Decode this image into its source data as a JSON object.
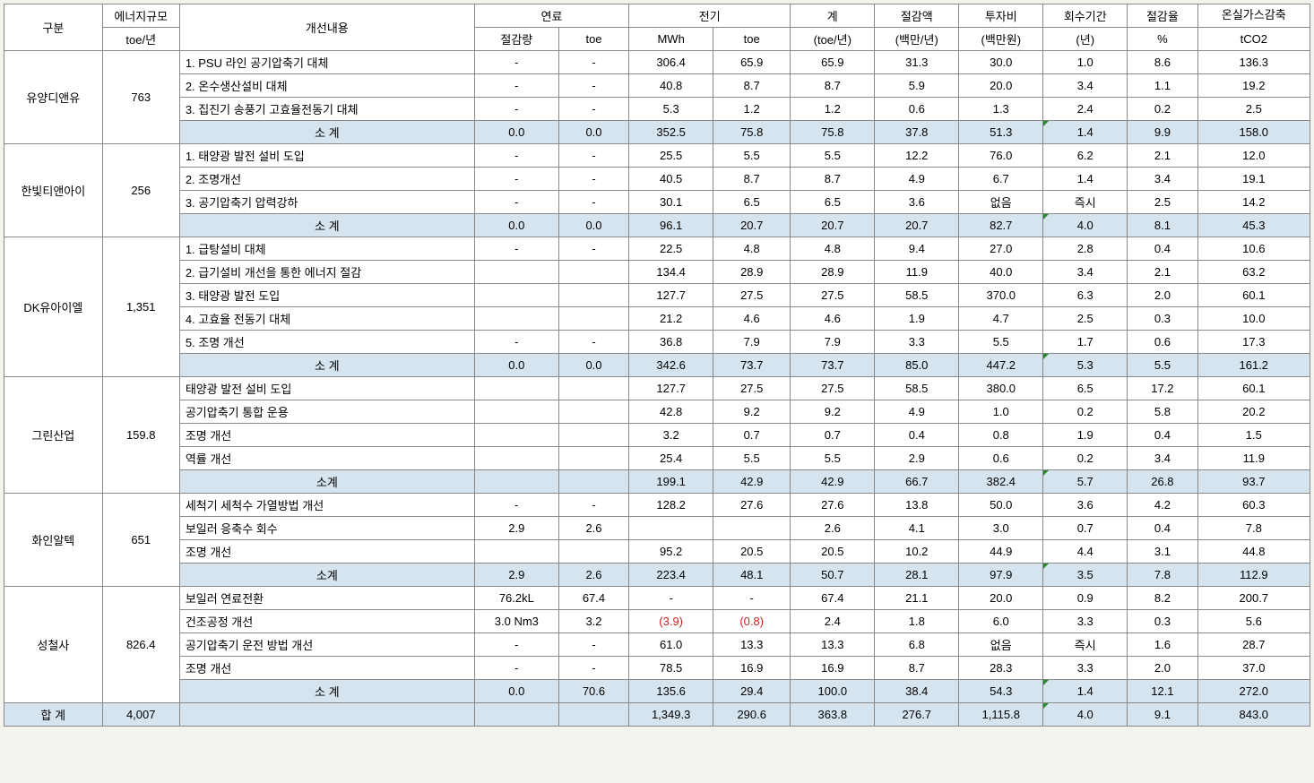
{
  "headers": {
    "gubun": "구분",
    "scale_top": "에너지규모",
    "scale_unit": "toe/년",
    "desc": "개선내용",
    "fuel": "연료",
    "fuel_sub1": "절감량",
    "fuel_sub2": "toe",
    "elec": "전기",
    "elec_sub1": "MWh",
    "elec_sub2": "toe",
    "total_top": "계",
    "total_unit": "(toe/년)",
    "save_top": "절감액",
    "save_unit": "(백만/년)",
    "invest_top": "투자비",
    "invest_unit": "(백만원)",
    "payback_top": "회수기간",
    "payback_unit": "(년)",
    "rate_top": "절감율",
    "rate_unit": "%",
    "ghg_top": "온실가스감축",
    "ghg_unit": "tCO2"
  },
  "groups": [
    {
      "name": "유양디앤유",
      "scale": "763",
      "rows": [
        {
          "desc": "1. PSU 라인 공기압축기 대체",
          "f1": "-",
          "f2": "-",
          "e1": "306.4",
          "e2": "65.9",
          "tot": "65.9",
          "sav": "31.3",
          "inv": "30.0",
          "pb": "1.0",
          "rt": "8.6",
          "ghg": "136.3"
        },
        {
          "desc": "2. 온수생산설비 대체",
          "f1": "-",
          "f2": "-",
          "e1": "40.8",
          "e2": "8.7",
          "tot": "8.7",
          "sav": "5.9",
          "inv": "20.0",
          "pb": "3.4",
          "rt": "1.1",
          "ghg": "19.2"
        },
        {
          "desc": "3. 집진기 송풍기 고효율전동기 대체",
          "f1": "-",
          "f2": "-",
          "e1": "5.3",
          "e2": "1.2",
          "tot": "1.2",
          "sav": "0.6",
          "inv": "1.3",
          "pb": "2.4",
          "rt": "0.2",
          "ghg": "2.5"
        }
      ],
      "subtotal": {
        "label": "소 계",
        "f1": "0.0",
        "f2": "0.0",
        "e1": "352.5",
        "e2": "75.8",
        "tot": "75.8",
        "sav": "37.8",
        "inv": "51.3",
        "pb": "1.4",
        "rt": "9.9",
        "ghg": "158.0"
      }
    },
    {
      "name": "한빛티앤아이",
      "scale": "256",
      "rows": [
        {
          "desc": "1. 태양광 발전 설비 도입",
          "f1": "-",
          "f2": "-",
          "e1": "25.5",
          "e2": "5.5",
          "tot": "5.5",
          "sav": "12.2",
          "inv": "76.0",
          "pb": "6.2",
          "rt": "2.1",
          "ghg": "12.0"
        },
        {
          "desc": "2. 조명개선",
          "f1": "-",
          "f2": "-",
          "e1": "40.5",
          "e2": "8.7",
          "tot": "8.7",
          "sav": "4.9",
          "inv": "6.7",
          "pb": "1.4",
          "rt": "3.4",
          "ghg": "19.1"
        },
        {
          "desc": "3. 공기압축기 압력강하",
          "f1": "-",
          "f2": "-",
          "e1": "30.1",
          "e2": "6.5",
          "tot": "6.5",
          "sav": "3.6",
          "inv": "없음",
          "pb": "즉시",
          "rt": "2.5",
          "ghg": "14.2"
        }
      ],
      "subtotal": {
        "label": "소 계",
        "f1": "0.0",
        "f2": "0.0",
        "e1": "96.1",
        "e2": "20.7",
        "tot": "20.7",
        "sav": "20.7",
        "inv": "82.7",
        "pb": "4.0",
        "rt": "8.1",
        "ghg": "45.3"
      }
    },
    {
      "name": "DK유아이엘",
      "scale": "1,351",
      "rows": [
        {
          "desc": "1. 급탕설비 대체",
          "f1": "-",
          "f2": "-",
          "e1": "22.5",
          "e2": "4.8",
          "tot": "4.8",
          "sav": "9.4",
          "inv": "27.0",
          "pb": "2.8",
          "rt": "0.4",
          "ghg": "10.6"
        },
        {
          "desc": "2. 급기설비 개선을 통한 에너지 절감",
          "f1": "",
          "f2": "",
          "e1": "134.4",
          "e2": "28.9",
          "tot": "28.9",
          "sav": "11.9",
          "inv": "40.0",
          "pb": "3.4",
          "rt": "2.1",
          "ghg": "63.2"
        },
        {
          "desc": "3. 태양광 발전 도입",
          "f1": "",
          "f2": "",
          "e1": "127.7",
          "e2": "27.5",
          "tot": "27.5",
          "sav": "58.5",
          "inv": "370.0",
          "pb": "6.3",
          "rt": "2.0",
          "ghg": "60.1"
        },
        {
          "desc": "4. 고효율 전동기 대체",
          "f1": "",
          "f2": "",
          "e1": "21.2",
          "e2": "4.6",
          "tot": "4.6",
          "sav": "1.9",
          "inv": "4.7",
          "pb": "2.5",
          "rt": "0.3",
          "ghg": "10.0"
        },
        {
          "desc": "5. 조명 개선",
          "f1": "-",
          "f2": "-",
          "e1": "36.8",
          "e2": "7.9",
          "tot": "7.9",
          "sav": "3.3",
          "inv": "5.5",
          "pb": "1.7",
          "rt": "0.6",
          "ghg": "17.3"
        }
      ],
      "subtotal": {
        "label": "소 계",
        "f1": "0.0",
        "f2": "0.0",
        "e1": "342.6",
        "e2": "73.7",
        "tot": "73.7",
        "sav": "85.0",
        "inv": "447.2",
        "pb": "5.3",
        "rt": "5.5",
        "ghg": "161.2"
      }
    },
    {
      "name": "그린산업",
      "scale": "159.8",
      "rows": [
        {
          "desc": "태양광 발전 설비 도입",
          "f1": "",
          "f2": "",
          "e1": "127.7",
          "e2": "27.5",
          "tot": "27.5",
          "sav": "58.5",
          "inv": "380.0",
          "pb": "6.5",
          "rt": "17.2",
          "ghg": "60.1"
        },
        {
          "desc": "공기압축기 통합 운용",
          "f1": "",
          "f2": "",
          "e1": "42.8",
          "e2": "9.2",
          "tot": "9.2",
          "sav": "4.9",
          "inv": "1.0",
          "pb": "0.2",
          "rt": "5.8",
          "ghg": "20.2"
        },
        {
          "desc": "조명 개선",
          "f1": "",
          "f2": "",
          "e1": "3.2",
          "e2": "0.7",
          "tot": "0.7",
          "sav": "0.4",
          "inv": "0.8",
          "pb": "1.9",
          "rt": "0.4",
          "ghg": "1.5"
        },
        {
          "desc": "역률 개선",
          "f1": "",
          "f2": "",
          "e1": "25.4",
          "e2": "5.5",
          "tot": "5.5",
          "sav": "2.9",
          "inv": "0.6",
          "pb": "0.2",
          "rt": "3.4",
          "ghg": "11.9"
        }
      ],
      "subtotal": {
        "label": "소계",
        "f1": "",
        "f2": "",
        "e1": "199.1",
        "e2": "42.9",
        "tot": "42.9",
        "sav": "66.7",
        "inv": "382.4",
        "pb": "5.7",
        "rt": "26.8",
        "ghg": "93.7"
      }
    },
    {
      "name": "화인알텍",
      "scale": "651",
      "rows": [
        {
          "desc": "세척기 세척수 가열방법 개선",
          "f1": "-",
          "f2": "-",
          "e1": "128.2",
          "e2": "27.6",
          "tot": "27.6",
          "sav": "13.8",
          "inv": "50.0",
          "pb": "3.6",
          "rt": "4.2",
          "ghg": "60.3"
        },
        {
          "desc": "보일러 응축수 회수",
          "f1": "2.9",
          "f2": "2.6",
          "e1": "",
          "e2": "",
          "tot": "2.6",
          "sav": "4.1",
          "inv": "3.0",
          "pb": "0.7",
          "rt": "0.4",
          "ghg": "7.8"
        },
        {
          "desc": "조명 개선",
          "f1": "",
          "f2": "",
          "e1": "95.2",
          "e2": "20.5",
          "tot": "20.5",
          "sav": "10.2",
          "inv": "44.9",
          "pb": "4.4",
          "rt": "3.1",
          "ghg": "44.8"
        }
      ],
      "subtotal": {
        "label": "소계",
        "f1": "2.9",
        "f2": "2.6",
        "e1": "223.4",
        "e2": "48.1",
        "tot": "50.7",
        "sav": "28.1",
        "inv": "97.9",
        "pb": "3.5",
        "rt": "7.8",
        "ghg": "112.9"
      }
    },
    {
      "name": "성철사",
      "scale": "826.4",
      "rows": [
        {
          "desc": "보일러 연료전환",
          "f1": "76.2kL",
          "f2": "67.4",
          "e1": "-",
          "e2": "-",
          "tot": "67.4",
          "sav": "21.1",
          "inv": "20.0",
          "pb": "0.9",
          "rt": "8.2",
          "ghg": "200.7"
        },
        {
          "desc": "건조공정 개선",
          "f1": "3.0 Nm3",
          "f2": "3.2",
          "e1": "(3.9)",
          "e2": "(0.8)",
          "tot": "2.4",
          "sav": "1.8",
          "inv": "6.0",
          "pb": "3.3",
          "rt": "0.3",
          "ghg": "5.6",
          "neg": true
        },
        {
          "desc": "공기압축기 운전 방법 개선",
          "f1": "-",
          "f2": "-",
          "e1": "61.0",
          "e2": "13.3",
          "tot": "13.3",
          "sav": "6.8",
          "inv": "없음",
          "pb": "즉시",
          "rt": "1.6",
          "ghg": "28.7"
        },
        {
          "desc": "조명 개선",
          "f1": "-",
          "f2": "-",
          "e1": "78.5",
          "e2": "16.9",
          "tot": "16.9",
          "sav": "8.7",
          "inv": "28.3",
          "pb": "3.3",
          "rt": "2.0",
          "ghg": "37.0"
        }
      ],
      "subtotal": {
        "label": "소 계",
        "f1": "0.0",
        "f2": "70.6",
        "e1": "135.6",
        "e2": "29.4",
        "tot": "100.0",
        "sav": "38.4",
        "inv": "54.3",
        "pb": "1.4",
        "rt": "12.1",
        "ghg": "272.0"
      }
    }
  ],
  "grand": {
    "label": "합 계",
    "scale": "4,007",
    "f1": "",
    "f2": "",
    "e1": "1,349.3",
    "e2": "290.6",
    "tot": "363.8",
    "sav": "276.7",
    "inv": "1,115.8",
    "pb": "4.0",
    "rt": "9.1",
    "ghg": "843.0"
  }
}
